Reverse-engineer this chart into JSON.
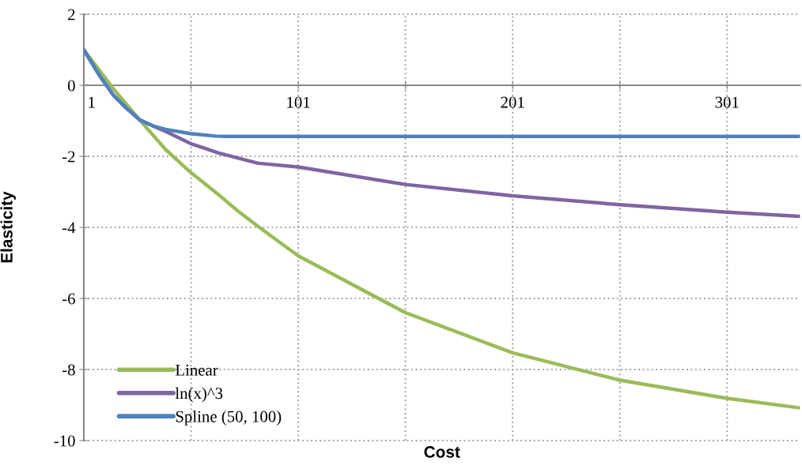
{
  "chart_data": {
    "type": "line",
    "xlabel": "Cost",
    "ylabel": "Elasticity",
    "xlim": [
      1,
      335
    ],
    "ylim": [
      -10,
      2
    ],
    "xticks": [
      1,
      {
        "value": 51,
        "label": null
      },
      101,
      {
        "value": 151,
        "label": null
      },
      201,
      {
        "value": 251,
        "label": null
      },
      301
    ],
    "yticks": [
      -10,
      -8,
      -6,
      -4,
      -2,
      0,
      2
    ],
    "grid": true,
    "legend": "bottom left",
    "line_style": "solid",
    "marker": "none",
    "series": [
      {
        "name": "Linear",
        "color": "#9bbb59",
        "x": [
          1,
          14.7,
          27,
          39.2,
          50.8,
          63.7,
          72.3,
          82,
          101,
          151,
          201,
          251,
          301,
          335
        ],
        "values": [
          1,
          -0.09,
          -0.97,
          -1.81,
          -2.45,
          -3.07,
          -3.51,
          -3.96,
          -4.8,
          -6.4,
          -7.53,
          -8.3,
          -8.81,
          -9.08
        ]
      },
      {
        "name": "ln(x)^3",
        "color": "#8064a2",
        "x": [
          1,
          8.6,
          14.7,
          20.8,
          27,
          33.1,
          39.2,
          50.8,
          63.7,
          82,
          101,
          151,
          201,
          251,
          301,
          335
        ],
        "values": [
          1,
          0.25,
          -0.27,
          -0.64,
          -0.97,
          -1.14,
          -1.3,
          -1.64,
          -1.9,
          -2.19,
          -2.3,
          -2.79,
          -3.11,
          -3.36,
          -3.57,
          -3.69
        ]
      },
      {
        "name": "Spline (50, 100)",
        "color": "#4f81bd",
        "x": [
          1,
          8.6,
          14.7,
          20.8,
          27,
          33.1,
          39.2,
          50.8,
          62.5,
          68,
          101,
          151,
          201,
          251,
          301,
          335
        ],
        "values": [
          1,
          0.25,
          -0.27,
          -0.64,
          -0.97,
          -1.14,
          -1.24,
          -1.36,
          -1.43,
          -1.44,
          -1.44,
          -1.44,
          -1.44,
          -1.44,
          -1.44,
          -1.44
        ]
      }
    ]
  }
}
